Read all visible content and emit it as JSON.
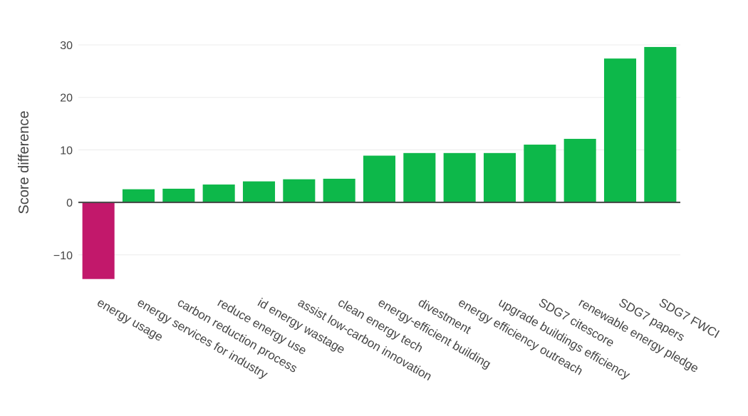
{
  "chart_data": {
    "type": "bar",
    "title": "",
    "xlabel": "",
    "ylabel": "Score difference",
    "ylim": [
      -15,
      30
    ],
    "yticks": [
      -10,
      0,
      10,
      20,
      30
    ],
    "ytick_labels": [
      "−10",
      "0",
      "10",
      "20",
      "30"
    ],
    "grid": true,
    "categories": [
      "energy usage",
      "energy services for industry",
      "carbon reduction process",
      "reduce energy use",
      "id energy wastage",
      "assist low-carbon innovation",
      "clean energy tech",
      "energy-efficient building",
      "divestment",
      "energy efficiency outreach",
      "upgrade buildings efficiency",
      "SDG7 citescore",
      "renewable energy pledge",
      "SDG7 papers",
      "SDG7 FWCI"
    ],
    "values": [
      -14.6,
      2.5,
      2.6,
      3.4,
      4.0,
      4.4,
      4.5,
      8.9,
      9.4,
      9.4,
      9.4,
      11.0,
      12.1,
      27.4,
      29.6
    ],
    "colors": {
      "positive": "#0db84a",
      "negative": "#c2186b",
      "grid": "#ececec",
      "zero_line": "#444444"
    }
  }
}
